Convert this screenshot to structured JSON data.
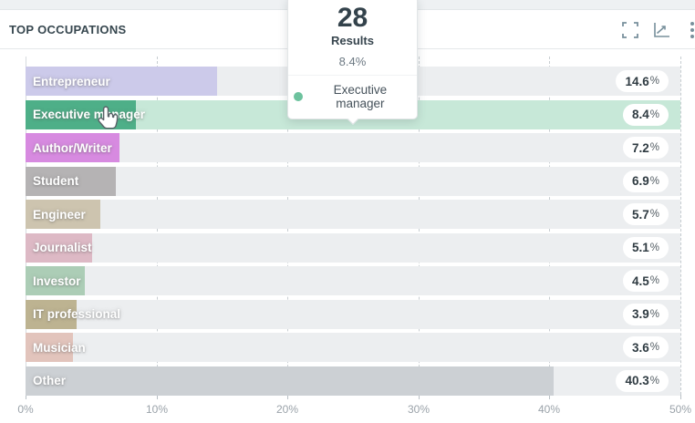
{
  "header": {
    "title": "TOP OCCUPATIONS"
  },
  "toolbar": {
    "fullscreen_icon": "fullscreen",
    "chart_type_icon": "line-chart",
    "menu_icon": "kebab-menu",
    "icon_color": "#78909c"
  },
  "tooltip": {
    "count": "28",
    "count_label": "Results",
    "percent": "8.4%",
    "series_label": "Executive manager",
    "dot_color": "#6dc29e"
  },
  "chart_data": {
    "type": "bar",
    "orientation": "horizontal",
    "title": "TOP OCCUPATIONS",
    "xlabel": "",
    "ylabel": "",
    "xlim": [
      0,
      50
    ],
    "grid": "vertical-dashed",
    "legend_position": "none",
    "x_ticks": [
      {
        "label": "0%",
        "value": 0
      },
      {
        "label": "10%",
        "value": 10
      },
      {
        "label": "20%",
        "value": 20
      },
      {
        "label": "30%",
        "value": 30
      },
      {
        "label": "40%",
        "value": 40
      },
      {
        "label": "50%",
        "value": 50
      }
    ],
    "categories": [
      "Entrepreneur",
      "Executive manager",
      "Author/Writer",
      "Student",
      "Engineer",
      "Journalist",
      "Investor",
      "IT professional",
      "Musician",
      "Other"
    ],
    "values": [
      14.6,
      8.4,
      7.2,
      6.9,
      5.7,
      5.1,
      4.5,
      3.9,
      3.6,
      40.3
    ],
    "value_labels": [
      "14.6%",
      "8.4%",
      "7.2%",
      "6.9%",
      "5.7%",
      "5.1%",
      "4.5%",
      "3.9%",
      "3.6%",
      "40.3%"
    ],
    "bar_colors": [
      "#cccaea",
      "#4eaf88",
      "#d78ae0",
      "#b5b3b4",
      "#cdc4af",
      "#ddb9c5",
      "#accdb6",
      "#bdb391",
      "#e2c4bc",
      "#ccd0d4"
    ],
    "track_color": "#eceef0",
    "highlight_track_color": "#c7e8d8",
    "highlighted_index": 1,
    "highlighted_category": "Executive manager"
  }
}
